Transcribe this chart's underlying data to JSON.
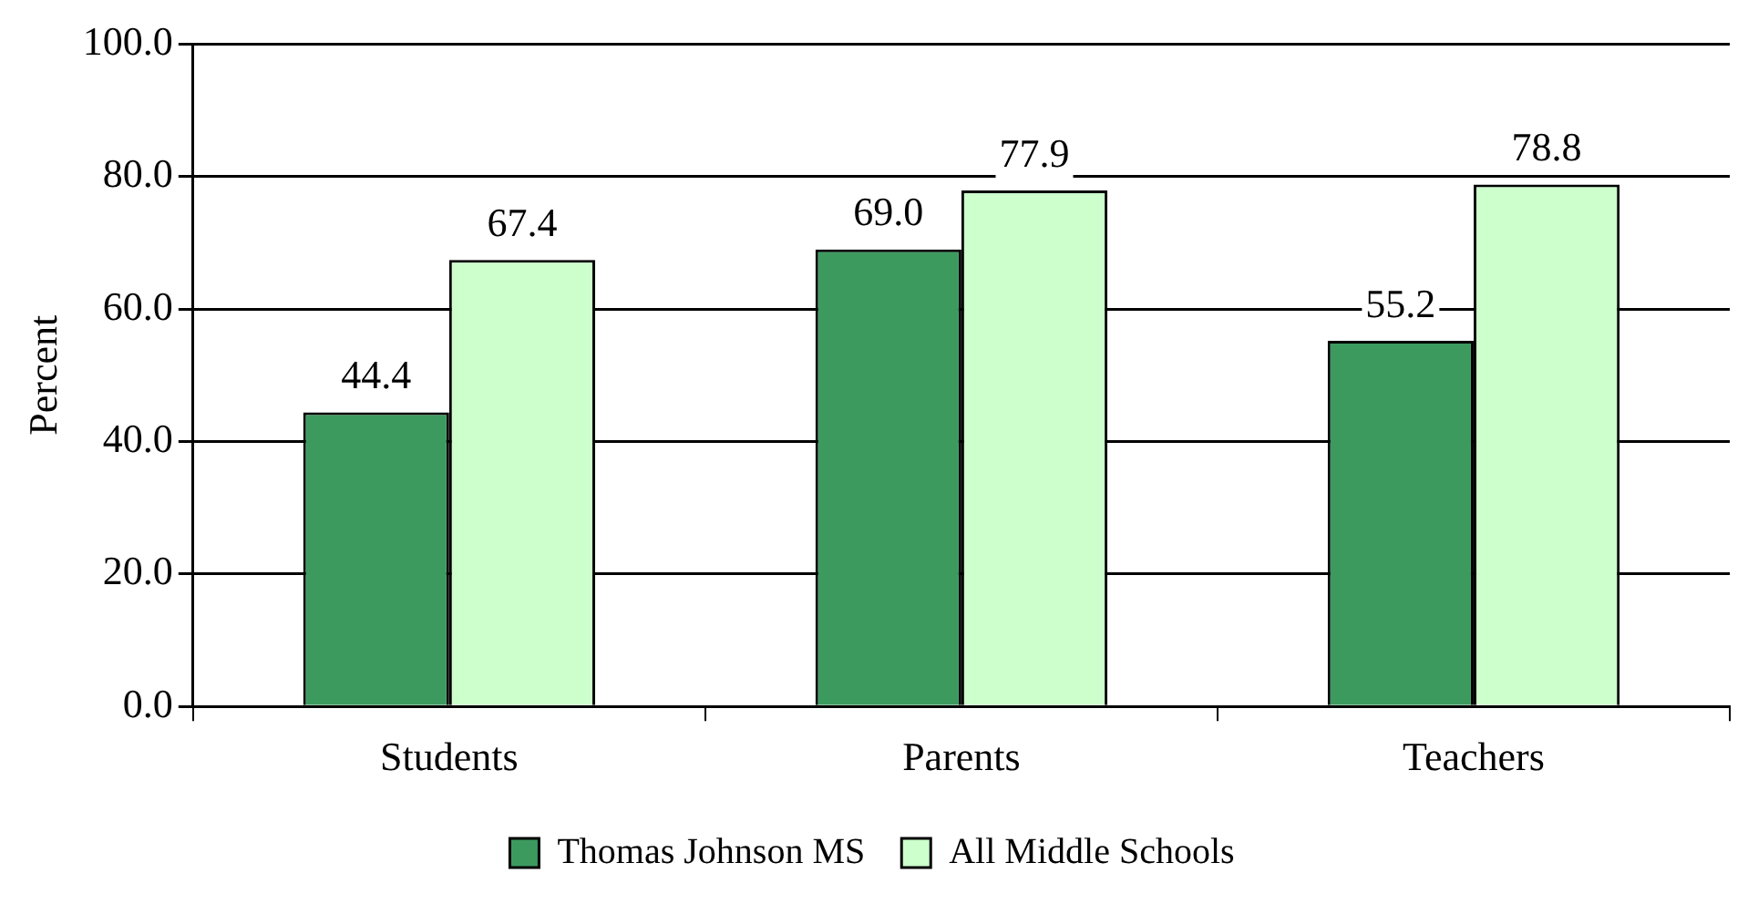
{
  "chart_data": {
    "type": "bar",
    "ylabel": "Percent",
    "categories": [
      "Students",
      "Parents",
      "Teachers"
    ],
    "series": [
      {
        "name": "Thomas Johnson MS",
        "color": "#3c9a5f",
        "values": [
          44.4,
          69.0,
          55.2
        ],
        "value_labels": [
          "44.4",
          "69.0",
          "55.2"
        ]
      },
      {
        "name": "All Middle Schools",
        "color": "#ccffcc",
        "values": [
          67.4,
          77.9,
          78.8
        ],
        "value_labels": [
          "67.4",
          "77.9",
          "78.8"
        ]
      }
    ],
    "ylim": [
      0,
      100
    ],
    "yticks": [
      {
        "value": 0,
        "label": "0.0"
      },
      {
        "value": 20,
        "label": "20.0"
      },
      {
        "value": 40,
        "label": "40.0"
      },
      {
        "value": 60,
        "label": "60.0"
      },
      {
        "value": 80,
        "label": "80.0"
      },
      {
        "value": 100,
        "label": "100.0"
      }
    ],
    "grid": "y",
    "legend": "bottom"
  }
}
